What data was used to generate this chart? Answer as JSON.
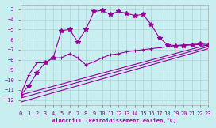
{
  "xlabel": "Windchill (Refroidissement éolien,°C)",
  "xlim": [
    0,
    23
  ],
  "ylim": [
    -12.5,
    -2.5
  ],
  "yticks": [
    -12,
    -11,
    -10,
    -9,
    -8,
    -7,
    -6,
    -5,
    -4,
    -3
  ],
  "xticks": [
    0,
    1,
    2,
    3,
    4,
    5,
    6,
    7,
    8,
    9,
    10,
    11,
    12,
    13,
    14,
    15,
    16,
    17,
    18,
    19,
    20,
    21,
    22,
    23
  ],
  "background_color": "#c8eef0",
  "grid_color": "#b0d8dc",
  "line_color": "#990099",
  "line1_x": [
    0,
    1,
    2,
    3,
    4,
    5,
    6,
    7,
    8,
    9,
    10,
    11,
    12,
    13,
    14,
    15,
    16,
    17,
    18,
    19,
    20,
    21,
    22,
    23
  ],
  "line1_y": [
    -11.5,
    -10.6,
    -9.3,
    -8.3,
    -7.8,
    -5.1,
    -5.0,
    -6.2,
    -5.0,
    -3.2,
    -3.1,
    -3.5,
    -3.2,
    -3.4,
    -3.6,
    -3.5,
    -4.5,
    -5.8,
    -6.5,
    -6.6,
    -6.6,
    -6.5,
    -6.4,
    -6.5
  ],
  "line2_x": [
    0,
    1,
    2,
    3,
    4,
    5,
    6,
    7,
    8,
    9,
    10,
    11,
    12,
    13,
    14,
    15,
    16,
    17,
    18,
    19,
    20,
    21,
    22,
    23
  ],
  "line2_y": [
    -11.5,
    -9.5,
    -8.3,
    -8.3,
    -7.8,
    -7.8,
    -7.4,
    -7.8,
    -8.5,
    -8.2,
    -7.8,
    -7.5,
    -7.4,
    -7.2,
    -7.1,
    -7.0,
    -6.9,
    -6.8,
    -6.7,
    -6.6,
    -6.5,
    -6.5,
    -6.5,
    -6.6
  ],
  "line3_x": [
    0,
    23
  ],
  "line3_y": [
    -11.5,
    -6.5
  ],
  "line4_x": [
    0,
    23
  ],
  "line4_y": [
    -11.8,
    -6.7
  ],
  "line5_x": [
    0,
    23
  ],
  "line5_y": [
    -12.2,
    -6.9
  ]
}
